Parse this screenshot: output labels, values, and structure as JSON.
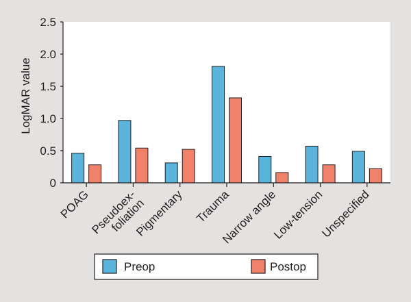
{
  "chart_data": {
    "type": "bar",
    "title": "",
    "xlabel": "",
    "ylabel": "LogMAR value",
    "ylim": [
      0,
      2.5
    ],
    "yticks": [
      "0",
      "0.5",
      "1.0",
      "1.5",
      "2.0",
      "2.5"
    ],
    "categories": [
      [
        "POAG"
      ],
      [
        "Pseudoex-",
        "foliation"
      ],
      [
        "Pigmentary"
      ],
      [
        "Trauma"
      ],
      [
        "Narrow angle"
      ],
      [
        "Low-tension"
      ],
      [
        "Unspecified"
      ]
    ],
    "series": [
      {
        "name": "Preop",
        "color": "#5ab4dc",
        "values": [
          0.46,
          0.97,
          0.31,
          1.81,
          0.41,
          0.57,
          0.49
        ]
      },
      {
        "name": "Postop",
        "color": "#f0826c",
        "values": [
          0.28,
          0.54,
          0.52,
          1.32,
          0.16,
          0.28,
          0.22
        ]
      }
    ],
    "grid": false,
    "legend_position": "bottom"
  }
}
